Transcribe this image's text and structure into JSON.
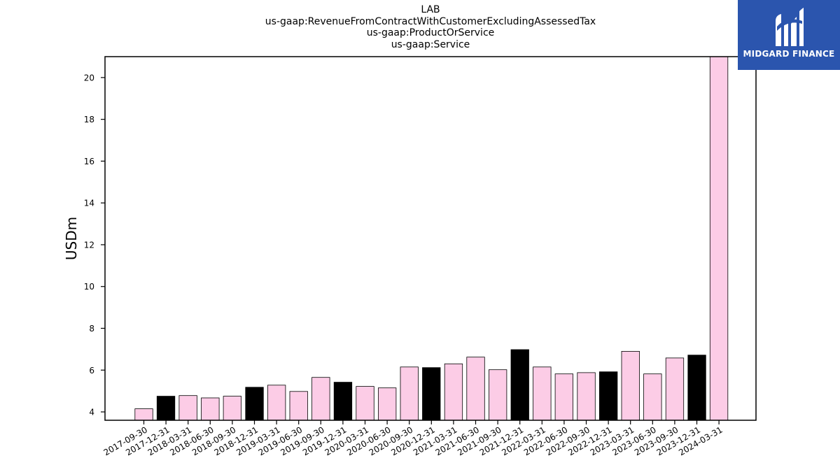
{
  "chart_data": {
    "type": "bar",
    "title_lines": [
      "LAB",
      "us-gaap:RevenueFromContractWithCustomerExcludingAssessedTax",
      "us-gaap:ProductOrService",
      "us-gaap:Service"
    ],
    "ylabel": "USDm",
    "xlabel": "",
    "ylim": [
      3.6,
      21.0
    ],
    "yticks": [
      4,
      6,
      8,
      10,
      12,
      14,
      16,
      18,
      20
    ],
    "grid": false,
    "categories": [
      "2017-09-30",
      "2017-12-31",
      "2018-03-31",
      "2018-06-30",
      "2018-09-30",
      "2018-12-31",
      "2019-03-31",
      "2019-06-30",
      "2019-09-30",
      "2019-12-31",
      "2020-03-31",
      "2020-06-30",
      "2020-09-30",
      "2020-12-31",
      "2021-03-31",
      "2021-06-30",
      "2021-09-30",
      "2021-12-31",
      "2022-03-31",
      "2022-06-30",
      "2022-09-30",
      "2022-12-31",
      "2023-03-31",
      "2023-06-30",
      "2023-09-30",
      "2023-12-31",
      "2024-03-31"
    ],
    "values": [
      4.15,
      4.75,
      4.78,
      4.67,
      4.75,
      5.18,
      5.28,
      4.98,
      5.65,
      5.42,
      5.22,
      5.15,
      6.15,
      6.12,
      6.3,
      6.62,
      6.02,
      6.98,
      6.15,
      5.82,
      5.88,
      5.92,
      6.9,
      5.82,
      6.58,
      6.72,
      21.0
    ],
    "bar_colors": {
      "quarter": "#fccce6",
      "year_end": "#000000",
      "edge": "#000000"
    }
  },
  "logo": {
    "text": "MIDGARD FINANCE",
    "background": "#2b55ae"
  }
}
